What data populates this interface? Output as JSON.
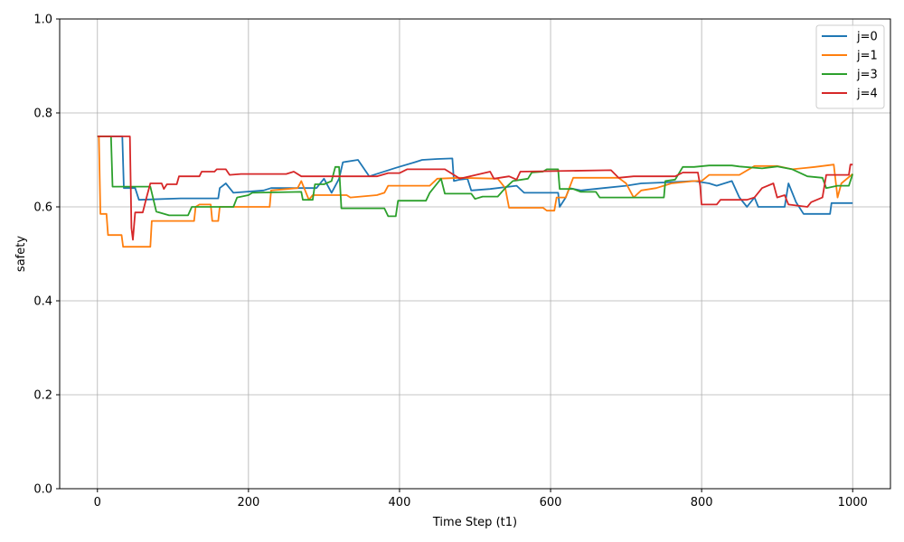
{
  "chart_data": {
    "type": "line",
    "xlabel": "Time Step (t1)",
    "ylabel": "safety",
    "xlim": [
      -50,
      1050
    ],
    "ylim": [
      0.0,
      1.0
    ],
    "xticks": [
      0,
      200,
      400,
      600,
      800,
      1000
    ],
    "xtick_labels": [
      "0",
      "200",
      "400",
      "600",
      "800",
      "1000"
    ],
    "yticks": [
      0.0,
      0.2,
      0.4,
      0.6,
      0.8,
      1.0
    ],
    "ytick_labels": [
      "0.0",
      "0.2",
      "0.4",
      "0.6",
      "0.8",
      "1.0"
    ],
    "grid": true,
    "legend_position": "top-right",
    "series": [
      {
        "name": "j=0",
        "color": "#1f77b4",
        "points": [
          [
            0,
            0.75
          ],
          [
            33,
            0.75
          ],
          [
            35,
            0.64
          ],
          [
            50,
            0.64
          ],
          [
            55,
            0.615
          ],
          [
            110,
            0.618
          ],
          [
            160,
            0.618
          ],
          [
            162,
            0.64
          ],
          [
            170,
            0.65
          ],
          [
            180,
            0.63
          ],
          [
            220,
            0.635
          ],
          [
            230,
            0.64
          ],
          [
            290,
            0.64
          ],
          [
            300,
            0.66
          ],
          [
            310,
            0.63
          ],
          [
            320,
            0.66
          ],
          [
            325,
            0.695
          ],
          [
            345,
            0.7
          ],
          [
            360,
            0.665
          ],
          [
            395,
            0.683
          ],
          [
            420,
            0.695
          ],
          [
            430,
            0.7
          ],
          [
            450,
            0.702
          ],
          [
            470,
            0.703
          ],
          [
            472,
            0.655
          ],
          [
            480,
            0.658
          ],
          [
            490,
            0.66
          ],
          [
            495,
            0.635
          ],
          [
            520,
            0.638
          ],
          [
            555,
            0.645
          ],
          [
            565,
            0.63
          ],
          [
            610,
            0.63
          ],
          [
            612,
            0.6
          ],
          [
            620,
            0.62
          ],
          [
            625,
            0.64
          ],
          [
            640,
            0.635
          ],
          [
            670,
            0.64
          ],
          [
            700,
            0.645
          ],
          [
            720,
            0.65
          ],
          [
            750,
            0.652
          ],
          [
            790,
            0.655
          ],
          [
            810,
            0.65
          ],
          [
            820,
            0.645
          ],
          [
            840,
            0.655
          ],
          [
            850,
            0.62
          ],
          [
            860,
            0.6
          ],
          [
            870,
            0.62
          ],
          [
            875,
            0.6
          ],
          [
            910,
            0.6
          ],
          [
            915,
            0.65
          ],
          [
            925,
            0.61
          ],
          [
            935,
            0.585
          ],
          [
            970,
            0.585
          ],
          [
            972,
            0.608
          ],
          [
            1000,
            0.608
          ]
        ]
      },
      {
        "name": "j=1",
        "color": "#ff7f0e",
        "points": [
          [
            0,
            0.75
          ],
          [
            2,
            0.75
          ],
          [
            4,
            0.585
          ],
          [
            12,
            0.585
          ],
          [
            14,
            0.54
          ],
          [
            32,
            0.54
          ],
          [
            34,
            0.515
          ],
          [
            70,
            0.515
          ],
          [
            72,
            0.57
          ],
          [
            100,
            0.57
          ],
          [
            128,
            0.57
          ],
          [
            130,
            0.6
          ],
          [
            135,
            0.605
          ],
          [
            150,
            0.605
          ],
          [
            152,
            0.57
          ],
          [
            160,
            0.57
          ],
          [
            162,
            0.6
          ],
          [
            228,
            0.6
          ],
          [
            230,
            0.635
          ],
          [
            265,
            0.64
          ],
          [
            270,
            0.655
          ],
          [
            280,
            0.615
          ],
          [
            285,
            0.625
          ],
          [
            300,
            0.625
          ],
          [
            330,
            0.625
          ],
          [
            335,
            0.62
          ],
          [
            370,
            0.625
          ],
          [
            380,
            0.63
          ],
          [
            385,
            0.645
          ],
          [
            440,
            0.645
          ],
          [
            450,
            0.66
          ],
          [
            480,
            0.662
          ],
          [
            530,
            0.66
          ],
          [
            540,
            0.64
          ],
          [
            545,
            0.598
          ],
          [
            590,
            0.598
          ],
          [
            595,
            0.592
          ],
          [
            605,
            0.592
          ],
          [
            608,
            0.62
          ],
          [
            620,
            0.62
          ],
          [
            630,
            0.662
          ],
          [
            690,
            0.662
          ],
          [
            700,
            0.65
          ],
          [
            710,
            0.62
          ],
          [
            720,
            0.635
          ],
          [
            740,
            0.64
          ],
          [
            760,
            0.65
          ],
          [
            790,
            0.655
          ],
          [
            800,
            0.655
          ],
          [
            810,
            0.668
          ],
          [
            850,
            0.668
          ],
          [
            870,
            0.687
          ],
          [
            900,
            0.687
          ],
          [
            920,
            0.68
          ],
          [
            950,
            0.685
          ],
          [
            975,
            0.69
          ],
          [
            980,
            0.62
          ],
          [
            985,
            0.65
          ],
          [
            1000,
            0.67
          ]
        ]
      },
      {
        "name": "j=3",
        "color": "#2ca02c",
        "points": [
          [
            0,
            0.75
          ],
          [
            18,
            0.75
          ],
          [
            20,
            0.643
          ],
          [
            70,
            0.643
          ],
          [
            78,
            0.59
          ],
          [
            95,
            0.582
          ],
          [
            120,
            0.582
          ],
          [
            125,
            0.6
          ],
          [
            180,
            0.6
          ],
          [
            185,
            0.62
          ],
          [
            200,
            0.625
          ],
          [
            205,
            0.63
          ],
          [
            270,
            0.632
          ],
          [
            272,
            0.615
          ],
          [
            285,
            0.615
          ],
          [
            288,
            0.648
          ],
          [
            300,
            0.648
          ],
          [
            310,
            0.655
          ],
          [
            315,
            0.685
          ],
          [
            320,
            0.685
          ],
          [
            323,
            0.597
          ],
          [
            380,
            0.597
          ],
          [
            385,
            0.58
          ],
          [
            395,
            0.58
          ],
          [
            398,
            0.613
          ],
          [
            435,
            0.613
          ],
          [
            440,
            0.63
          ],
          [
            450,
            0.65
          ],
          [
            455,
            0.66
          ],
          [
            460,
            0.628
          ],
          [
            495,
            0.628
          ],
          [
            500,
            0.617
          ],
          [
            510,
            0.622
          ],
          [
            530,
            0.622
          ],
          [
            540,
            0.64
          ],
          [
            550,
            0.655
          ],
          [
            570,
            0.66
          ],
          [
            575,
            0.673
          ],
          [
            590,
            0.675
          ],
          [
            595,
            0.68
          ],
          [
            610,
            0.68
          ],
          [
            612,
            0.638
          ],
          [
            630,
            0.638
          ],
          [
            640,
            0.632
          ],
          [
            660,
            0.632
          ],
          [
            665,
            0.62
          ],
          [
            700,
            0.62
          ],
          [
            750,
            0.62
          ],
          [
            752,
            0.655
          ],
          [
            765,
            0.658
          ],
          [
            775,
            0.685
          ],
          [
            790,
            0.685
          ],
          [
            810,
            0.688
          ],
          [
            840,
            0.688
          ],
          [
            850,
            0.686
          ],
          [
            880,
            0.682
          ],
          [
            900,
            0.686
          ],
          [
            920,
            0.68
          ],
          [
            940,
            0.665
          ],
          [
            960,
            0.662
          ],
          [
            965,
            0.64
          ],
          [
            980,
            0.645
          ],
          [
            995,
            0.645
          ],
          [
            1000,
            0.67
          ]
        ]
      },
      {
        "name": "j=4",
        "color": "#d62728",
        "points": [
          [
            0,
            0.75
          ],
          [
            43,
            0.75
          ],
          [
            45,
            0.555
          ],
          [
            47,
            0.53
          ],
          [
            50,
            0.588
          ],
          [
            60,
            0.588
          ],
          [
            65,
            0.62
          ],
          [
            70,
            0.65
          ],
          [
            85,
            0.65
          ],
          [
            88,
            0.638
          ],
          [
            92,
            0.648
          ],
          [
            105,
            0.648
          ],
          [
            108,
            0.665
          ],
          [
            135,
            0.665
          ],
          [
            138,
            0.675
          ],
          [
            155,
            0.675
          ],
          [
            158,
            0.68
          ],
          [
            170,
            0.68
          ],
          [
            175,
            0.668
          ],
          [
            190,
            0.67
          ],
          [
            250,
            0.67
          ],
          [
            260,
            0.675
          ],
          [
            270,
            0.665
          ],
          [
            350,
            0.665
          ],
          [
            370,
            0.665
          ],
          [
            385,
            0.672
          ],
          [
            400,
            0.672
          ],
          [
            410,
            0.68
          ],
          [
            460,
            0.68
          ],
          [
            465,
            0.675
          ],
          [
            480,
            0.66
          ],
          [
            520,
            0.675
          ],
          [
            525,
            0.66
          ],
          [
            545,
            0.665
          ],
          [
            555,
            0.658
          ],
          [
            560,
            0.675
          ],
          [
            680,
            0.678
          ],
          [
            690,
            0.662
          ],
          [
            710,
            0.665
          ],
          [
            765,
            0.665
          ],
          [
            775,
            0.673
          ],
          [
            795,
            0.673
          ],
          [
            798,
            0.645
          ],
          [
            800,
            0.605
          ],
          [
            820,
            0.605
          ],
          [
            825,
            0.615
          ],
          [
            860,
            0.615
          ],
          [
            870,
            0.62
          ],
          [
            880,
            0.64
          ],
          [
            895,
            0.65
          ],
          [
            900,
            0.62
          ],
          [
            910,
            0.625
          ],
          [
            915,
            0.605
          ],
          [
            940,
            0.6
          ],
          [
            945,
            0.61
          ],
          [
            960,
            0.62
          ],
          [
            965,
            0.668
          ],
          [
            995,
            0.668
          ],
          [
            997,
            0.69
          ],
          [
            1000,
            0.69
          ]
        ]
      }
    ]
  }
}
